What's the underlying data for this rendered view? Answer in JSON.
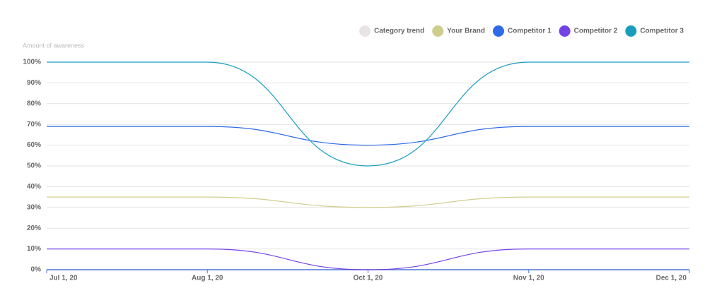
{
  "chart_data": {
    "type": "line",
    "y_label": "Amount of awareness",
    "categories": [
      "Jul 1, 20",
      "Aug 1, 20",
      "Oct 1, 20",
      "Nov 1, 20",
      "Dec 1, 20"
    ],
    "series": [
      {
        "name": "Category trend",
        "color": "#e8e3e6",
        "values": [
          null,
          null,
          null,
          null,
          null
        ]
      },
      {
        "name": "Your Brand",
        "color": "#cfcd8c",
        "values": [
          35,
          35,
          30,
          35,
          35
        ]
      },
      {
        "name": "Competitor 1",
        "color": "#2f6ae8",
        "values": [
          69,
          69,
          60,
          69,
          69
        ]
      },
      {
        "name": "Competitor 2",
        "color": "#7542e6",
        "values": [
          10,
          10,
          0,
          10,
          10
        ]
      },
      {
        "name": "Competitor 3",
        "color": "#1a9dbd",
        "values": [
          100,
          100,
          50,
          100,
          100
        ]
      }
    ],
    "ylim": [
      0,
      100
    ],
    "yticks": [
      {
        "value": 0,
        "label": "0%"
      },
      {
        "value": 10,
        "label": "10%"
      },
      {
        "value": 20,
        "label": "20%"
      },
      {
        "value": 30,
        "label": "30%"
      },
      {
        "value": 40,
        "label": "40%"
      },
      {
        "value": 50,
        "label": "50%"
      },
      {
        "value": 60,
        "label": "60%"
      },
      {
        "value": 70,
        "label": "70%"
      },
      {
        "value": 80,
        "label": "80%"
      },
      {
        "value": 90,
        "label": "90%"
      },
      {
        "value": 100,
        "label": "100%"
      }
    ],
    "grid": true,
    "legend": "top-right"
  }
}
